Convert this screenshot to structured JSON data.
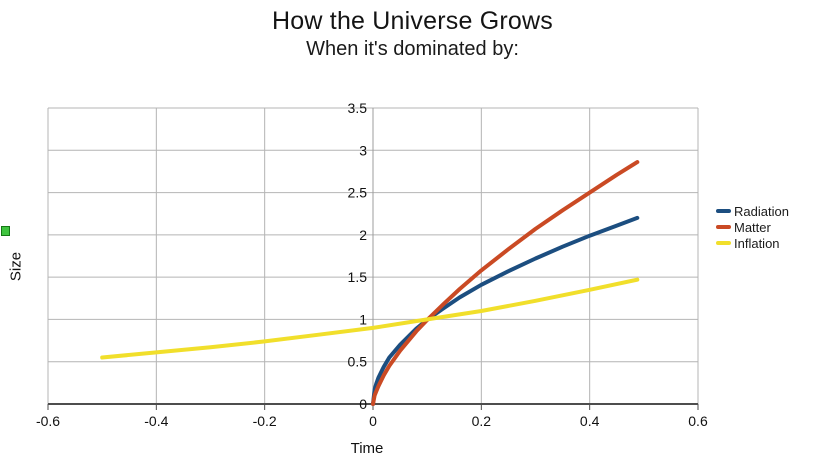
{
  "title": "How the Universe Grows",
  "subtitle": "When it's dominated by:",
  "chart_data": {
    "type": "line",
    "title": "How the Universe Grows",
    "subtitle": "When it's dominated by:",
    "xlabel": "Time",
    "ylabel": "Size",
    "xlim": [
      -0.6,
      0.6
    ],
    "ylim": [
      0,
      3.5
    ],
    "grid": true,
    "legend_position": "right",
    "xticks": [
      {
        "value": -0.6,
        "label": "-0.6"
      },
      {
        "value": -0.4,
        "label": "-0.4"
      },
      {
        "value": -0.2,
        "label": "-0.2"
      },
      {
        "value": 0,
        "label": "0"
      },
      {
        "value": 0.2,
        "label": "0.2"
      },
      {
        "value": 0.4,
        "label": "0.4"
      },
      {
        "value": 0.6,
        "label": "0.6"
      }
    ],
    "yticks": [
      {
        "value": 0,
        "label": "0"
      },
      {
        "value": 0.5,
        "label": "0.5"
      },
      {
        "value": 1,
        "label": "1"
      },
      {
        "value": 1.5,
        "label": "1.5"
      },
      {
        "value": 2,
        "label": "2"
      },
      {
        "value": 2.5,
        "label": "2.5"
      },
      {
        "value": 3,
        "label": "3"
      },
      {
        "value": 3.5,
        "label": "3.5"
      }
    ],
    "series": [
      {
        "name": "Radiation",
        "color": "#1c4e80",
        "points": [
          [
            0,
            0
          ],
          [
            0.003,
            0.17
          ],
          [
            0.006,
            0.24
          ],
          [
            0.01,
            0.31
          ],
          [
            0.02,
            0.44
          ],
          [
            0.03,
            0.55
          ],
          [
            0.05,
            0.7
          ],
          [
            0.08,
            0.89
          ],
          [
            0.101,
            1.0
          ],
          [
            0.13,
            1.13
          ],
          [
            0.16,
            1.26
          ],
          [
            0.2,
            1.41
          ],
          [
            0.25,
            1.57
          ],
          [
            0.3,
            1.72
          ],
          [
            0.35,
            1.86
          ],
          [
            0.4,
            1.99
          ],
          [
            0.45,
            2.11
          ],
          [
            0.488,
            2.2
          ]
        ]
      },
      {
        "name": "Matter",
        "color": "#ca4a24",
        "points": [
          [
            0,
            0
          ],
          [
            0.003,
            0.1
          ],
          [
            0.006,
            0.15
          ],
          [
            0.01,
            0.21
          ],
          [
            0.02,
            0.34
          ],
          [
            0.03,
            0.45
          ],
          [
            0.05,
            0.63
          ],
          [
            0.08,
            0.86
          ],
          [
            0.101,
            1.0
          ],
          [
            0.13,
            1.18
          ],
          [
            0.16,
            1.36
          ],
          [
            0.2,
            1.58
          ],
          [
            0.25,
            1.83
          ],
          [
            0.3,
            2.07
          ],
          [
            0.35,
            2.29
          ],
          [
            0.4,
            2.5
          ],
          [
            0.45,
            2.71
          ],
          [
            0.488,
            2.86
          ]
        ]
      },
      {
        "name": "Inflation",
        "color": "#f1df2b",
        "points": [
          [
            -0.5,
            0.55
          ],
          [
            -0.4,
            0.61
          ],
          [
            -0.3,
            0.67
          ],
          [
            -0.2,
            0.74
          ],
          [
            -0.1,
            0.82
          ],
          [
            0,
            0.9
          ],
          [
            0.1,
            1.0
          ],
          [
            0.2,
            1.1
          ],
          [
            0.3,
            1.22
          ],
          [
            0.4,
            1.35
          ],
          [
            0.488,
            1.47
          ]
        ]
      }
    ]
  },
  "colors": {
    "gridline": "#b4b4b4",
    "zero_axis": "#9c9c9c",
    "bottom_axis": "#4d4d4d",
    "tick_text": "#111111",
    "handle_green": "#3fc43f"
  }
}
